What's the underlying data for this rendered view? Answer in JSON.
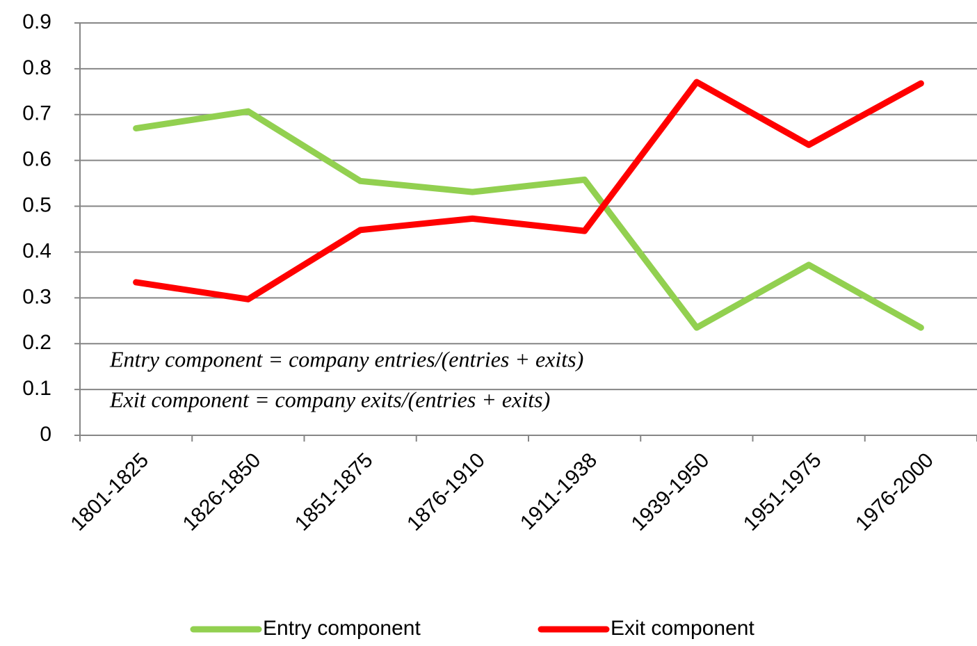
{
  "chart_data": {
    "type": "line",
    "categories": [
      "1801-1825",
      "1826-1850",
      "1851-1875",
      "1876-1910",
      "1911-1938",
      "1939-1950",
      "1951-1975",
      "1976-2000"
    ],
    "series": [
      {
        "name": "Entry component",
        "color": "#92d050",
        "values": [
          0.67,
          0.707,
          0.555,
          0.531,
          0.558,
          0.235,
          0.372,
          0.235
        ]
      },
      {
        "name": "Exit component",
        "color": "#ff0000",
        "values": [
          0.334,
          0.297,
          0.448,
          0.473,
          0.446,
          0.771,
          0.634,
          0.768
        ]
      }
    ],
    "ylim": [
      0,
      0.9
    ],
    "yticks": [
      0,
      0.1,
      0.2,
      0.3,
      0.4,
      0.5,
      0.6,
      0.7,
      0.8,
      0.9
    ],
    "grid": true,
    "legend": "bottom",
    "annotations": [
      "Entry component = company entries/(entries + exits)",
      "Exit component = company exits/(entries + exits)"
    ]
  }
}
